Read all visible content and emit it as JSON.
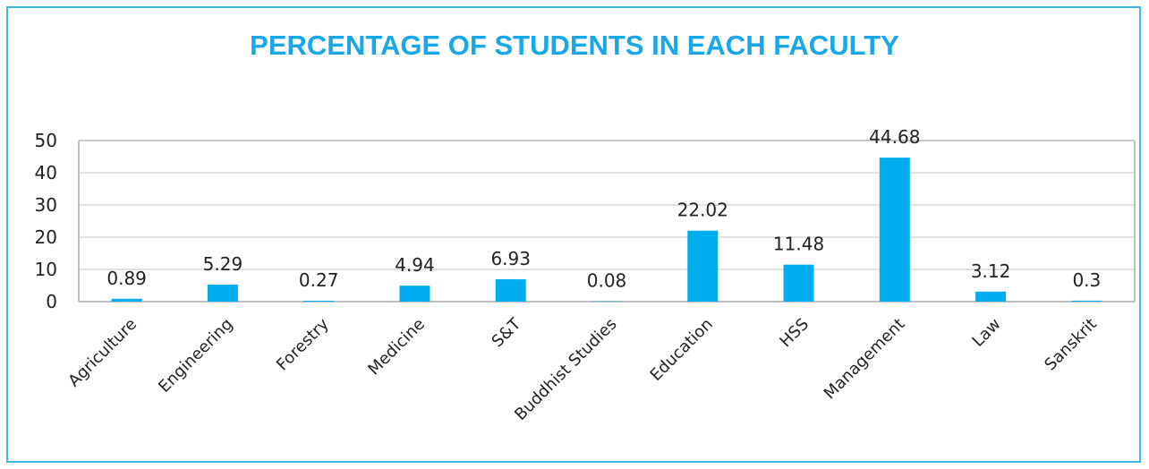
{
  "chart_data": {
    "type": "bar",
    "title": "PERCENTAGE OF STUDENTS IN EACH FACULTY",
    "categories": [
      "Agriculture",
      "Engineering",
      "Forestry",
      "Medicine",
      "S&T",
      "Buddhist Studies",
      "Education",
      "HSS",
      "Management",
      "Law",
      "Sanskrit"
    ],
    "values": [
      0.89,
      5.29,
      0.27,
      4.94,
      6.93,
      0.08,
      22.02,
      11.48,
      44.68,
      3.12,
      0.3
    ],
    "data_labels": [
      "0.89",
      "5.29",
      "0.27",
      "4.94",
      "6.93",
      "0.08",
      "22.02",
      "11.48",
      "44.68",
      "3.12",
      "0.3"
    ],
    "yticks": [
      0,
      10,
      20,
      30,
      40,
      50
    ],
    "ylim": [
      0,
      50
    ],
    "xlabel": "",
    "ylabel": "",
    "grid": true,
    "legend": "none",
    "colors": {
      "bar": "#00adee",
      "title": "#1aa7e8",
      "frame": "#3fb8e8",
      "grid": "#d9d9d9",
      "axis": "#bfbfbf"
    }
  }
}
